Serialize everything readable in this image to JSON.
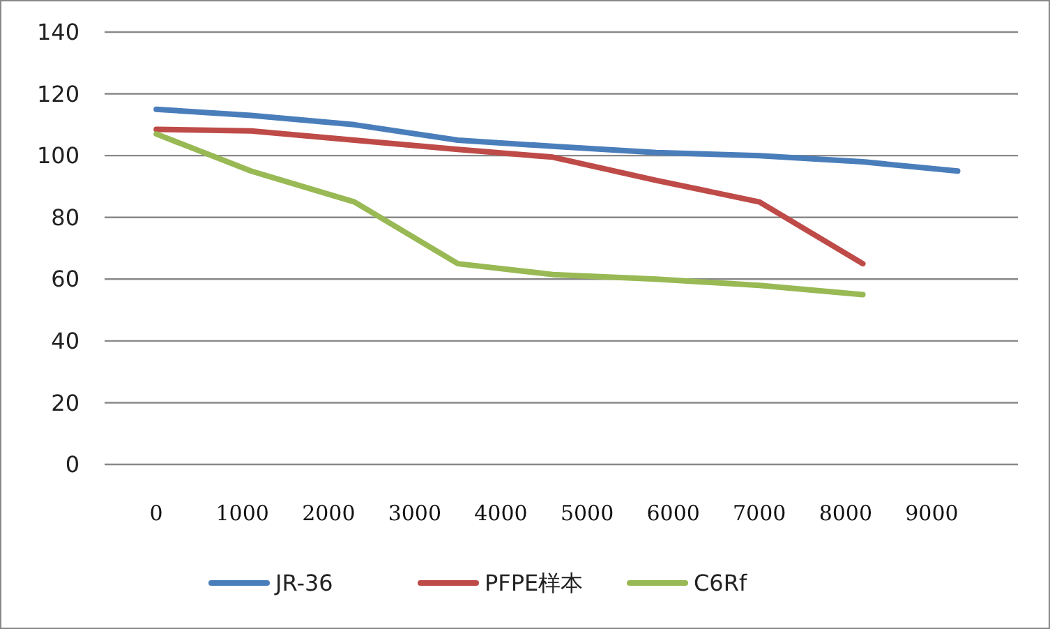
{
  "chart_data": {
    "type": "line",
    "xlim": [
      -600,
      10000
    ],
    "xticks": [
      0,
      1000,
      2000,
      3000,
      4000,
      5000,
      6000,
      7000,
      8000,
      9000
    ],
    "ylim": [
      0,
      140
    ],
    "yticks": [
      0,
      20,
      40,
      60,
      80,
      100,
      120,
      140
    ],
    "grid": "y",
    "legend": "bottom",
    "marker": "none",
    "line_style": "solid",
    "series": [
      {
        "name": "JR-36",
        "color": "#4a7ebb",
        "x": [
          0,
          1100,
          2300,
          3500,
          4600,
          5800,
          7000,
          8200,
          9300
        ],
        "values": [
          115,
          113,
          110,
          105,
          103,
          101,
          100,
          98,
          95
        ]
      },
      {
        "name": "PFPE样本",
        "color": "#be4b48",
        "x": [
          0,
          1100,
          2300,
          3500,
          4600,
          5800,
          7000,
          8200
        ],
        "values": [
          108.5,
          108,
          105,
          102,
          99.5,
          92,
          85,
          65
        ]
      },
      {
        "name": "C6Rf",
        "color": "#98b954",
        "x": [
          0,
          1100,
          2300,
          3500,
          4600,
          5800,
          7000,
          8200
        ],
        "values": [
          107,
          95,
          85,
          65,
          61.5,
          60,
          58,
          55
        ]
      }
    ]
  }
}
